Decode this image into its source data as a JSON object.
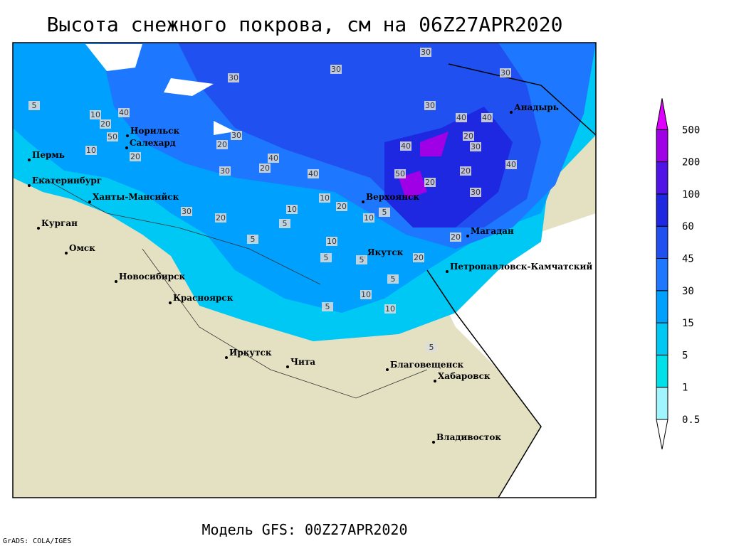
{
  "title": "Высота снежного покрова, см на 06Z27APR2020",
  "footer": "Модель GFS: 00Z27APR2020",
  "credit": "GrADS: COLA/IGES",
  "cities": [
    "Норильск",
    "Салехард",
    "Пермь",
    "Екатеринбург",
    "Ханты-Мансийск",
    "Курган",
    "Омск",
    "Новосибирск",
    "Красноярск",
    "Иркутск",
    "Чита",
    "Благовещенск",
    "Хабаровск",
    "Владивосток",
    "Якутск",
    "Верхоянск",
    "Магадан",
    "Петропавловск-Камчатский",
    "Анадырь"
  ],
  "contour_labels": [
    30,
    30,
    30,
    30,
    30,
    5,
    10,
    20,
    40,
    50,
    20,
    10,
    20,
    30,
    20,
    30,
    40,
    40,
    50,
    20,
    40,
    20,
    30,
    40,
    20,
    30,
    10,
    10,
    20,
    5,
    5,
    10,
    5,
    5,
    10,
    5,
    10,
    5,
    10,
    5,
    20,
    40,
    5,
    20,
    40,
    30,
    20
  ],
  "legend": {
    "levels": [
      0.5,
      1,
      5,
      15,
      30,
      45,
      60,
      100,
      200,
      500
    ],
    "colors": [
      "#a0f5ff",
      "#00e0e8",
      "#00c8f5",
      "#00a0ff",
      "#1e78ff",
      "#2050f0",
      "#1e28e0",
      "#5014e6",
      "#a000e6",
      "#e000ff"
    ]
  }
}
